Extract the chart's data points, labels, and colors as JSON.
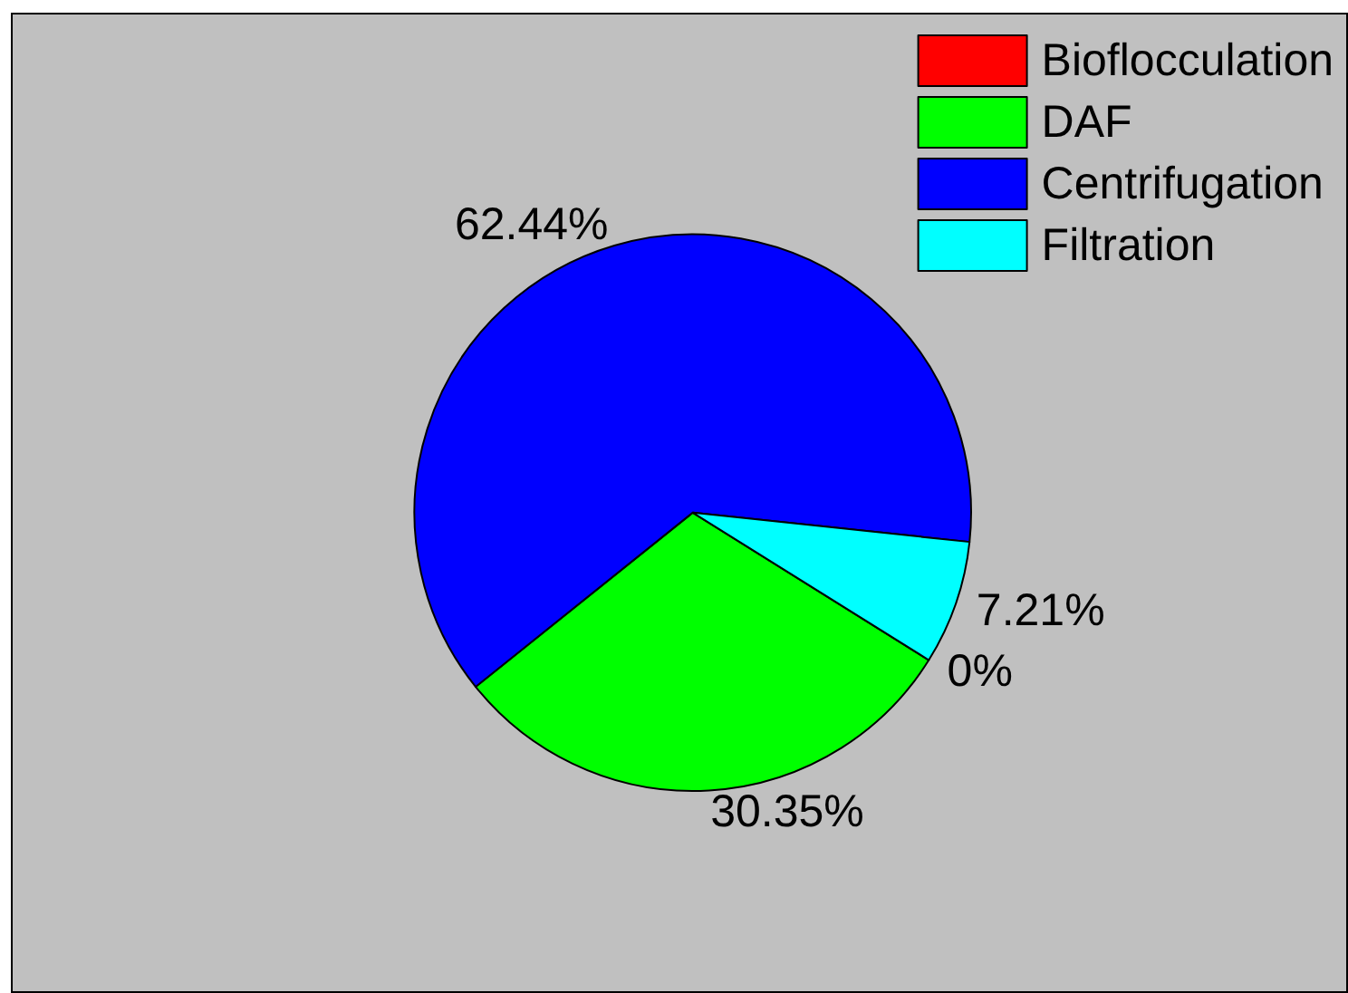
{
  "chart_data": {
    "type": "pie",
    "categories": [
      "Bioflocculation",
      "DAF",
      "Centrifugation",
      "Filtration"
    ],
    "values": [
      0,
      30.35,
      62.44,
      7.21
    ],
    "colors": [
      "#ff0000",
      "#00ff00",
      "#0000ff",
      "#00ffff"
    ],
    "value_labels": [
      "0%",
      "30.35%",
      "62.44%",
      "7.21%"
    ],
    "legend": "top right"
  }
}
